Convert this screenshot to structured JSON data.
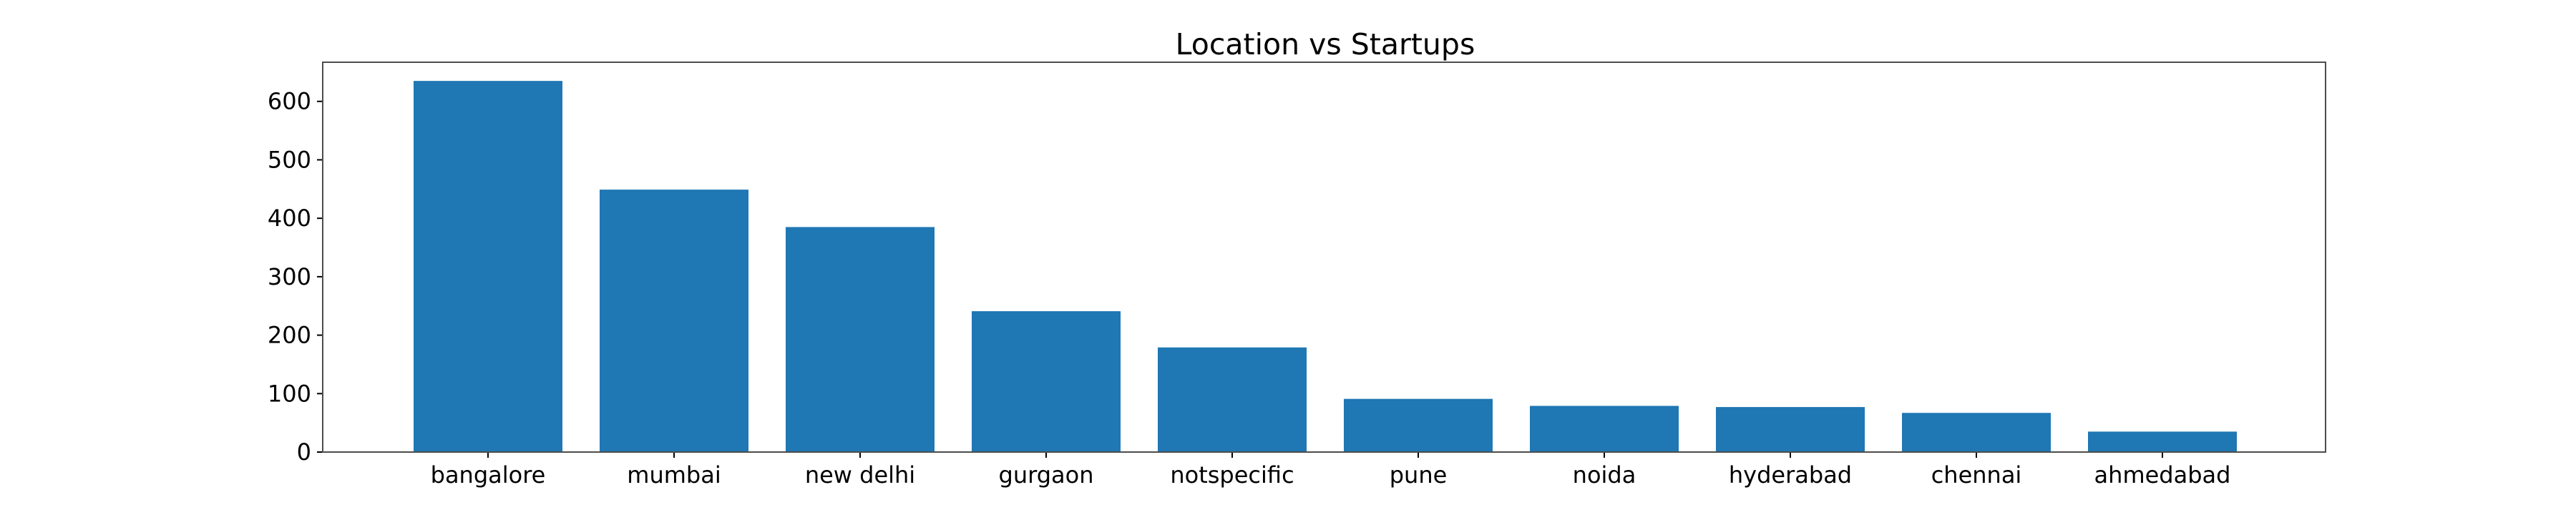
{
  "chart_data": {
    "type": "bar",
    "title": "Location vs Startups",
    "xlabel": "",
    "ylabel": "",
    "categories": [
      "bangalore",
      "mumbai",
      "new delhi",
      "gurgaon",
      "notspecific",
      "pune",
      "noida",
      "hyderabad",
      "chennai",
      "ahmedabad"
    ],
    "values": [
      635,
      449,
      385,
      241,
      179,
      91,
      79,
      77,
      67,
      35
    ],
    "ylim": [
      0,
      667
    ],
    "yticks": [
      0,
      100,
      200,
      300,
      400,
      500,
      600
    ],
    "grid": false,
    "legend": "none",
    "bar_color": "#1f77b4"
  }
}
